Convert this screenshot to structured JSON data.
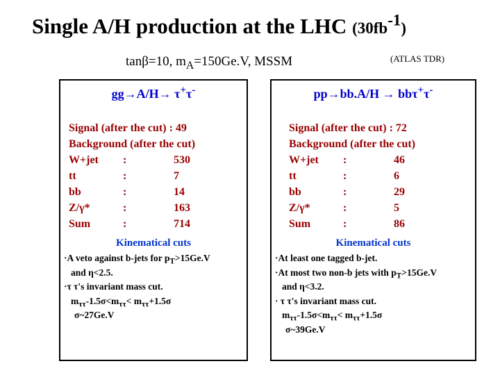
{
  "colors": {
    "header_blue": "#0000CC",
    "cuts_blue": "#0033CC",
    "dark_red": "#990000"
  },
  "title": {
    "segments": [
      {
        "t": "Single A/H production at the LHC "
      },
      {
        "t": "(30fb",
        "cls": "small"
      },
      {
        "t": "-1",
        "s": "sup",
        "cls": "small"
      },
      {
        "t": ")",
        "cls": "small"
      }
    ]
  },
  "subtitle": {
    "segments": [
      {
        "t": "tanβ=10, m"
      },
      {
        "t": "A",
        "s": "sub"
      },
      {
        "t": "=150Ge.V, MSSM"
      }
    ],
    "note": "(ATLAS TDR)"
  },
  "left": {
    "header": [
      {
        "t": "gg→A/H→ τ"
      },
      {
        "t": "+",
        "s": "sup"
      },
      {
        "t": "τ"
      },
      {
        "t": "-",
        "s": "sup"
      }
    ],
    "signal": "Signal (after the cut) : 49",
    "background": "Background (after the cut)",
    "rows": [
      {
        "label": "W+jet",
        "colon": ":",
        "value": "530"
      },
      {
        "label": "tt",
        "colon": ":",
        "value": "7"
      },
      {
        "label": "bb",
        "colon": ":",
        "value": "14"
      },
      {
        "label": "Z/γ*",
        "colon": ":",
        "value": "163"
      },
      {
        "label": "Sum",
        "colon": ":",
        "value": "714"
      }
    ],
    "cuts_title": "Kinematical cuts",
    "cuts": [
      {
        "segments": [
          {
            "t": "·A veto against b-jets for p"
          },
          {
            "t": "T",
            "s": "sub"
          },
          {
            "t": ">15Ge.V"
          }
        ]
      },
      {
        "segments": [
          {
            "t": "and η<2.5."
          }
        ]
      },
      {
        "segments": [
          {
            "t": "·τ τ's invariant mass cut."
          }
        ]
      },
      {
        "segments": [
          {
            "t": "m"
          },
          {
            "t": "ττ",
            "s": "sub"
          },
          {
            "t": "-1.5σ<m"
          },
          {
            "t": "ττ",
            "s": "sub"
          },
          {
            "t": "< m"
          },
          {
            "t": "ττ",
            "s": "sub"
          },
          {
            "t": "+1.5σ"
          }
        ]
      },
      {
        "segments": [
          {
            "t": "σ~27Ge.V"
          }
        ]
      }
    ]
  },
  "right": {
    "header": [
      {
        "t": "pp→bb.A/H → bbτ"
      },
      {
        "t": "+",
        "s": "sup"
      },
      {
        "t": "τ"
      },
      {
        "t": "-",
        "s": "sup"
      }
    ],
    "signal": "Signal (after the cut)  : 72",
    "background": "Background (after the cut)",
    "rows": [
      {
        "label": "W+jet",
        "colon": ":",
        "value": "46"
      },
      {
        "label": "tt",
        "colon": ":",
        "value": "6"
      },
      {
        "label": "bb",
        "colon": ":",
        "value": "29"
      },
      {
        "label": "Z/γ*",
        "colon": ":",
        "value": "5"
      },
      {
        "label": "Sum",
        "colon": ":",
        "value": "86"
      }
    ],
    "cuts_title": "Kinematical cuts",
    "cuts": [
      {
        "segments": [
          {
            "t": "·At least one tagged b-jet."
          }
        ]
      },
      {
        "segments": [
          {
            "t": "·At most two non-b jets with p"
          },
          {
            "t": "T",
            "s": "sub"
          },
          {
            "t": ">15Ge.V"
          }
        ]
      },
      {
        "segments": [
          {
            "t": "and η<3.2."
          }
        ]
      },
      {
        "segments": [
          {
            "t": "· τ τ's invariant mass cut."
          }
        ]
      },
      {
        "segments": [
          {
            "t": "m"
          },
          {
            "t": "ττ",
            "s": "sub"
          },
          {
            "t": "-1.5σ<m"
          },
          {
            "t": "ττ",
            "s": "sub"
          },
          {
            "t": "< m"
          },
          {
            "t": "ττ",
            "s": "sub"
          },
          {
            "t": "+1.5σ"
          }
        ]
      },
      {
        "segments": [
          {
            "t": "σ~39Ge.V"
          }
        ]
      }
    ]
  }
}
